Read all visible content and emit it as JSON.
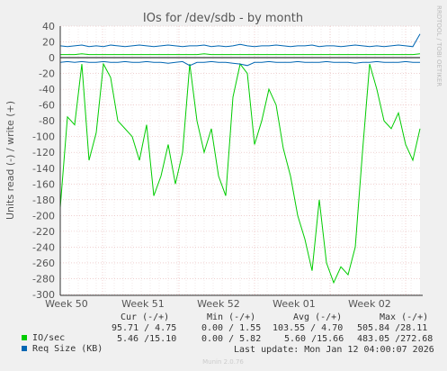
{
  "chart_data": {
    "type": "line",
    "title": "IOs for /dev/sdb - by month",
    "ylabel": "Units read (-) / write (+)",
    "ylim": [
      -300,
      40
    ],
    "yticks": [
      40,
      20,
      0,
      -20,
      -40,
      -60,
      -80,
      -100,
      -120,
      -140,
      -160,
      -180,
      -200,
      -220,
      -240,
      -260,
      -280,
      -300
    ],
    "xticks": [
      "Week 50",
      "Week 51",
      "Week 52",
      "Week 01",
      "Week 02"
    ],
    "grid": true,
    "watermark": "RRDTOOL / TOBI OETIKER",
    "series": [
      {
        "name": "IO/sec",
        "color": "#00cc00",
        "read": [
          -190,
          -75,
          -85,
          -8,
          -130,
          -95,
          -8,
          -25,
          -80,
          -90,
          -100,
          -130,
          -85,
          -175,
          -150,
          -110,
          -160,
          -120,
          -8,
          -80,
          -120,
          -90,
          -150,
          -175,
          -50,
          -8,
          -20,
          -110,
          -80,
          -40,
          -60,
          -115,
          -150,
          -200,
          -230,
          -270,
          -180,
          -260,
          -285,
          -265,
          -275,
          -240,
          -120,
          -8,
          -40,
          -80,
          -90,
          -70,
          -110,
          -130,
          -90
        ],
        "write": [
          4,
          4,
          4,
          5,
          4,
          4,
          4,
          4,
          4,
          4,
          4,
          4,
          4,
          4,
          4,
          4,
          4,
          4,
          4,
          4,
          5,
          4,
          4,
          4,
          4,
          4,
          4,
          4,
          4,
          4,
          4,
          4,
          4,
          4,
          4,
          4,
          4,
          4,
          4,
          4,
          4,
          4,
          4,
          4,
          4,
          4,
          4,
          4,
          4,
          4,
          5
        ]
      },
      {
        "name": "Req Size (KB)",
        "color": "#0066b3",
        "read": [
          -6,
          -5,
          -6,
          -5,
          -6,
          -6,
          -5,
          -6,
          -6,
          -5,
          -6,
          -6,
          -5,
          -6,
          -6,
          -7,
          -6,
          -5,
          -10,
          -6,
          -6,
          -5,
          -6,
          -6,
          -7,
          -8,
          -10,
          -6,
          -6,
          -5,
          -6,
          -6,
          -6,
          -5,
          -6,
          -6,
          -6,
          -5,
          -6,
          -6,
          -6,
          -7,
          -6,
          -6,
          -5,
          -6,
          -6,
          -6,
          -5,
          -6,
          -6
        ],
        "write": [
          15,
          14,
          15,
          16,
          14,
          15,
          14,
          16,
          15,
          14,
          15,
          16,
          15,
          14,
          15,
          16,
          15,
          14,
          15,
          15,
          16,
          14,
          15,
          14,
          15,
          17,
          15,
          14,
          15,
          15,
          16,
          15,
          14,
          15,
          15,
          16,
          14,
          15,
          15,
          14,
          15,
          16,
          15,
          14,
          15,
          14,
          15,
          16,
          15,
          14,
          30
        ]
      }
    ]
  },
  "legend": {
    "headers": [
      "Cur (-/+)",
      "Min (-/+)",
      "Avg (-/+)",
      "Max (-/+)"
    ],
    "rows": [
      {
        "label": "IO/sec",
        "color": "#00cc00",
        "cur": "95.71 / 4.75",
        "min": "0.00 / 1.55",
        "avg": "103.55 / 4.70",
        "max": "505.84 /28.11"
      },
      {
        "label": "Req Size (KB)",
        "color": "#0066b3",
        "cur": "5.46 /15.10",
        "min": "0.00 / 5.82",
        "avg": "5.60 /15.66",
        "max": "483.05 /272.68"
      }
    ]
  },
  "last_update": "Last update: Mon Jan 12 04:00:07 2026",
  "footer": "Munin 2.0.76"
}
